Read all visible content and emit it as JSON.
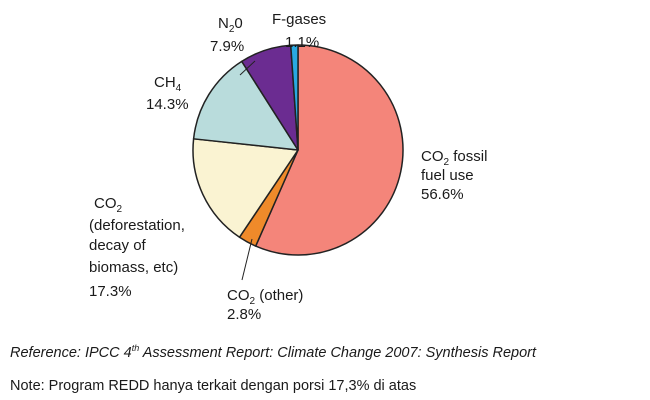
{
  "chart_data": {
    "type": "pie",
    "title": "",
    "start_angle_deg": 0,
    "direction": "clockwise",
    "slices": [
      {
        "key": "co2_fossil",
        "label_parts": [
          "CO",
          "2",
          " fossil"
        ],
        "label_line2": "fuel use",
        "percent_text": "56.6%",
        "value": 56.6,
        "color": "#f4857a"
      },
      {
        "key": "co2_other",
        "label_parts": [
          "CO",
          "2",
          " (other)"
        ],
        "percent_text": "2.8%",
        "value": 2.8,
        "color": "#ef8a2a"
      },
      {
        "key": "co2_deforestation",
        "label_parts": [
          "CO",
          "2",
          ""
        ],
        "label_lines": [
          "(deforestation,",
          "decay of",
          "biomass, etc)"
        ],
        "percent_text": "17.3%",
        "value": 17.3,
        "color": "#faf3d2"
      },
      {
        "key": "ch4",
        "label_parts": [
          "CH",
          "4",
          ""
        ],
        "percent_text": "14.3%",
        "value": 14.3,
        "color": "#b9dcdc"
      },
      {
        "key": "n2o",
        "label_parts": [
          "N",
          "2",
          "0"
        ],
        "percent_text": "7.9%",
        "value": 7.9,
        "color": "#6b2c91"
      },
      {
        "key": "fgases",
        "label_parts": [
          "F-gases",
          "",
          ""
        ],
        "percent_text": "1.1%",
        "value": 1.1,
        "color": "#29a9e1"
      }
    ]
  },
  "reference": {
    "prefix": "Reference: IPCC 4",
    "sup": "th",
    "suffix": " Assessment Report: Climate Change 2007: Synthesis Report"
  },
  "note": "Note: Program REDD hanya terkait dengan porsi 17,3% di atas"
}
